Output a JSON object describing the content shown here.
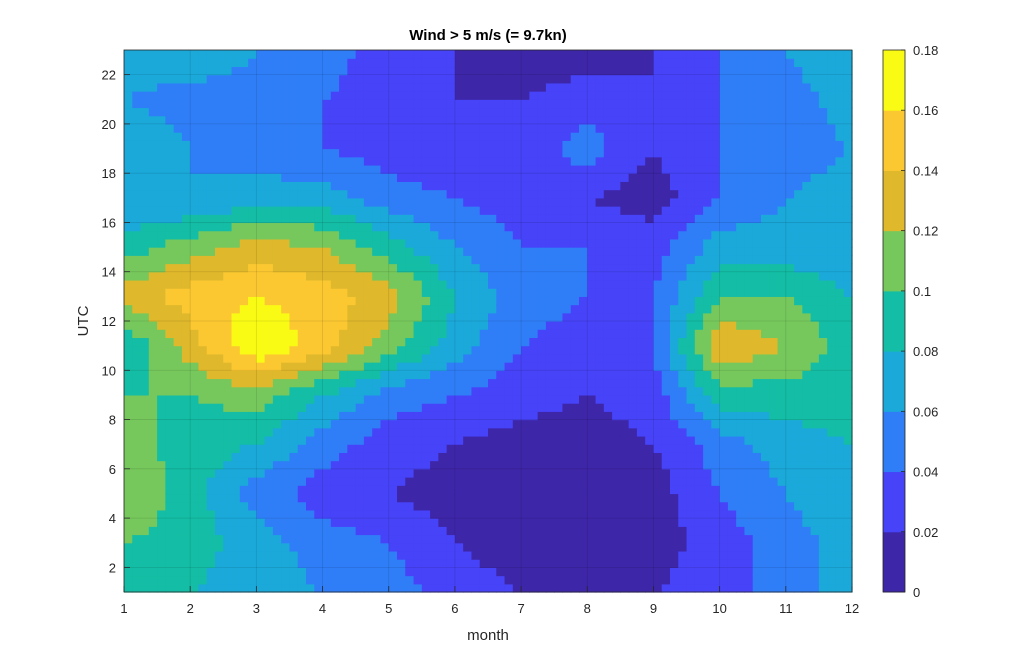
{
  "chart_data": {
    "type": "heatmap",
    "subtype": "filled-contour",
    "title": "Wind > 5 m/s (= 9.7kn)",
    "xlabel": "month",
    "ylabel": "UTC",
    "xlim": [
      1,
      12
    ],
    "ylim": [
      1,
      23
    ],
    "x": [
      1,
      2,
      3,
      4,
      5,
      6,
      7,
      8,
      9,
      10,
      11,
      12
    ],
    "y": [
      1,
      3,
      5,
      7,
      9,
      11,
      13,
      15,
      17,
      19,
      21,
      23
    ],
    "xticks": [
      "1",
      "2",
      "3",
      "4",
      "5",
      "6",
      "7",
      "8",
      "9",
      "10",
      "11",
      "12"
    ],
    "yticks": [
      "2",
      "4",
      "6",
      "8",
      "10",
      "12",
      "14",
      "16",
      "18",
      "20",
      "22"
    ],
    "colorbar": {
      "min": 0,
      "max": 0.18,
      "ticks": [
        "0",
        "0.02",
        "0.04",
        "0.06",
        "0.08",
        "0.1",
        "0.12",
        "0.14",
        "0.16",
        "0.18"
      ],
      "colormap": [
        "#3e26a8",
        "#4743f8",
        "#2f7ef8",
        "#1ba9da",
        "#14bda5",
        "#76c85c",
        "#dfb82c",
        "#fbc832",
        "#f9fb15"
      ]
    },
    "grid": true,
    "values": [
      [
        0.09,
        0.08,
        0.07,
        0.06,
        0.05,
        0.03,
        0.02,
        0.02,
        0.02,
        0.03,
        0.05,
        0.07
      ],
      [
        0.1,
        0.09,
        0.07,
        0.05,
        0.04,
        0.02,
        0.01,
        0.01,
        0.01,
        0.03,
        0.05,
        0.07
      ],
      [
        0.12,
        0.09,
        0.05,
        0.03,
        0.02,
        0.01,
        0.005,
        0.005,
        0.01,
        0.04,
        0.06,
        0.08
      ],
      [
        0.11,
        0.09,
        0.08,
        0.05,
        0.03,
        0.02,
        0.01,
        0.01,
        0.02,
        0.05,
        0.07,
        0.08
      ],
      [
        0.1,
        0.1,
        0.11,
        0.08,
        0.05,
        0.04,
        0.03,
        0.02,
        0.03,
        0.09,
        0.09,
        0.09
      ],
      [
        0.08,
        0.13,
        0.18,
        0.15,
        0.11,
        0.07,
        0.04,
        0.03,
        0.04,
        0.14,
        0.12,
        0.09
      ],
      [
        0.13,
        0.15,
        0.16,
        0.15,
        0.13,
        0.08,
        0.05,
        0.04,
        0.04,
        0.1,
        0.1,
        0.08
      ],
      [
        0.09,
        0.11,
        0.13,
        0.12,
        0.09,
        0.06,
        0.04,
        0.04,
        0.03,
        0.07,
        0.07,
        0.06
      ],
      [
        0.06,
        0.06,
        0.07,
        0.07,
        0.05,
        0.04,
        0.03,
        0.02,
        0.01,
        0.04,
        0.06,
        0.07
      ],
      [
        0.08,
        0.06,
        0.05,
        0.04,
        0.03,
        0.02,
        0.03,
        0.05,
        0.02,
        0.04,
        0.05,
        0.06
      ],
      [
        0.06,
        0.05,
        0.05,
        0.04,
        0.03,
        0.02,
        0.02,
        0.03,
        0.02,
        0.04,
        0.05,
        0.07
      ],
      [
        0.07,
        0.08,
        0.06,
        0.05,
        0.03,
        0.02,
        0.01,
        0.01,
        0.02,
        0.04,
        0.06,
        0.08
      ]
    ]
  }
}
